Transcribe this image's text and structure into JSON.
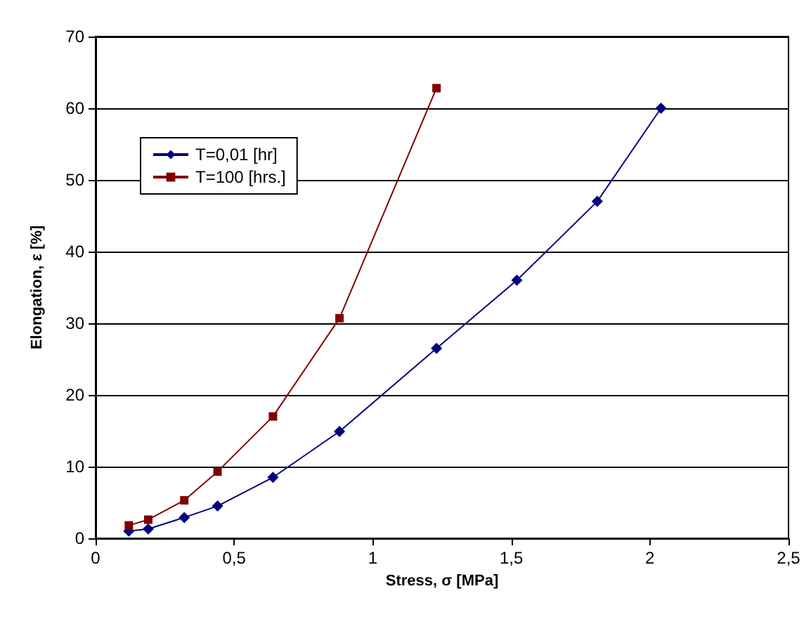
{
  "chart_data": {
    "type": "line",
    "xlabel": "Stress, σ [MPa]",
    "ylabel": "Elongation, ε [%]",
    "series": [
      {
        "name": "T=0,01 [hr]",
        "color": "#000080",
        "marker": "diamond",
        "x": [
          0.12,
          0.19,
          0.32,
          0.44,
          0.64,
          0.88,
          1.23,
          1.52,
          1.81,
          2.04
        ],
        "values": [
          1,
          1.3,
          2.9,
          4.5,
          8.5,
          14.9,
          26.5,
          36,
          47,
          60
        ]
      },
      {
        "name": "T=100 [hrs.]",
        "color": "#800000",
        "marker": "square",
        "x": [
          0.12,
          0.19,
          0.32,
          0.44,
          0.64,
          0.88,
          1.23
        ],
        "values": [
          1.8,
          2.6,
          5.3,
          9.3,
          17,
          30.7,
          62.8
        ]
      }
    ],
    "xlim": [
      0,
      2.5
    ],
    "xticks": [
      0,
      {
        "value": 0.5,
        "label": "0,5"
      },
      1,
      {
        "value": 1.5,
        "label": "1,5"
      },
      2,
      {
        "value": 2.5,
        "label": "2,5"
      }
    ],
    "ylim": [
      0,
      70
    ],
    "yticks": [
      0,
      10,
      20,
      30,
      40,
      50,
      60,
      70
    ],
    "grid": "y",
    "legend": "top left",
    "line_style": "solid"
  }
}
